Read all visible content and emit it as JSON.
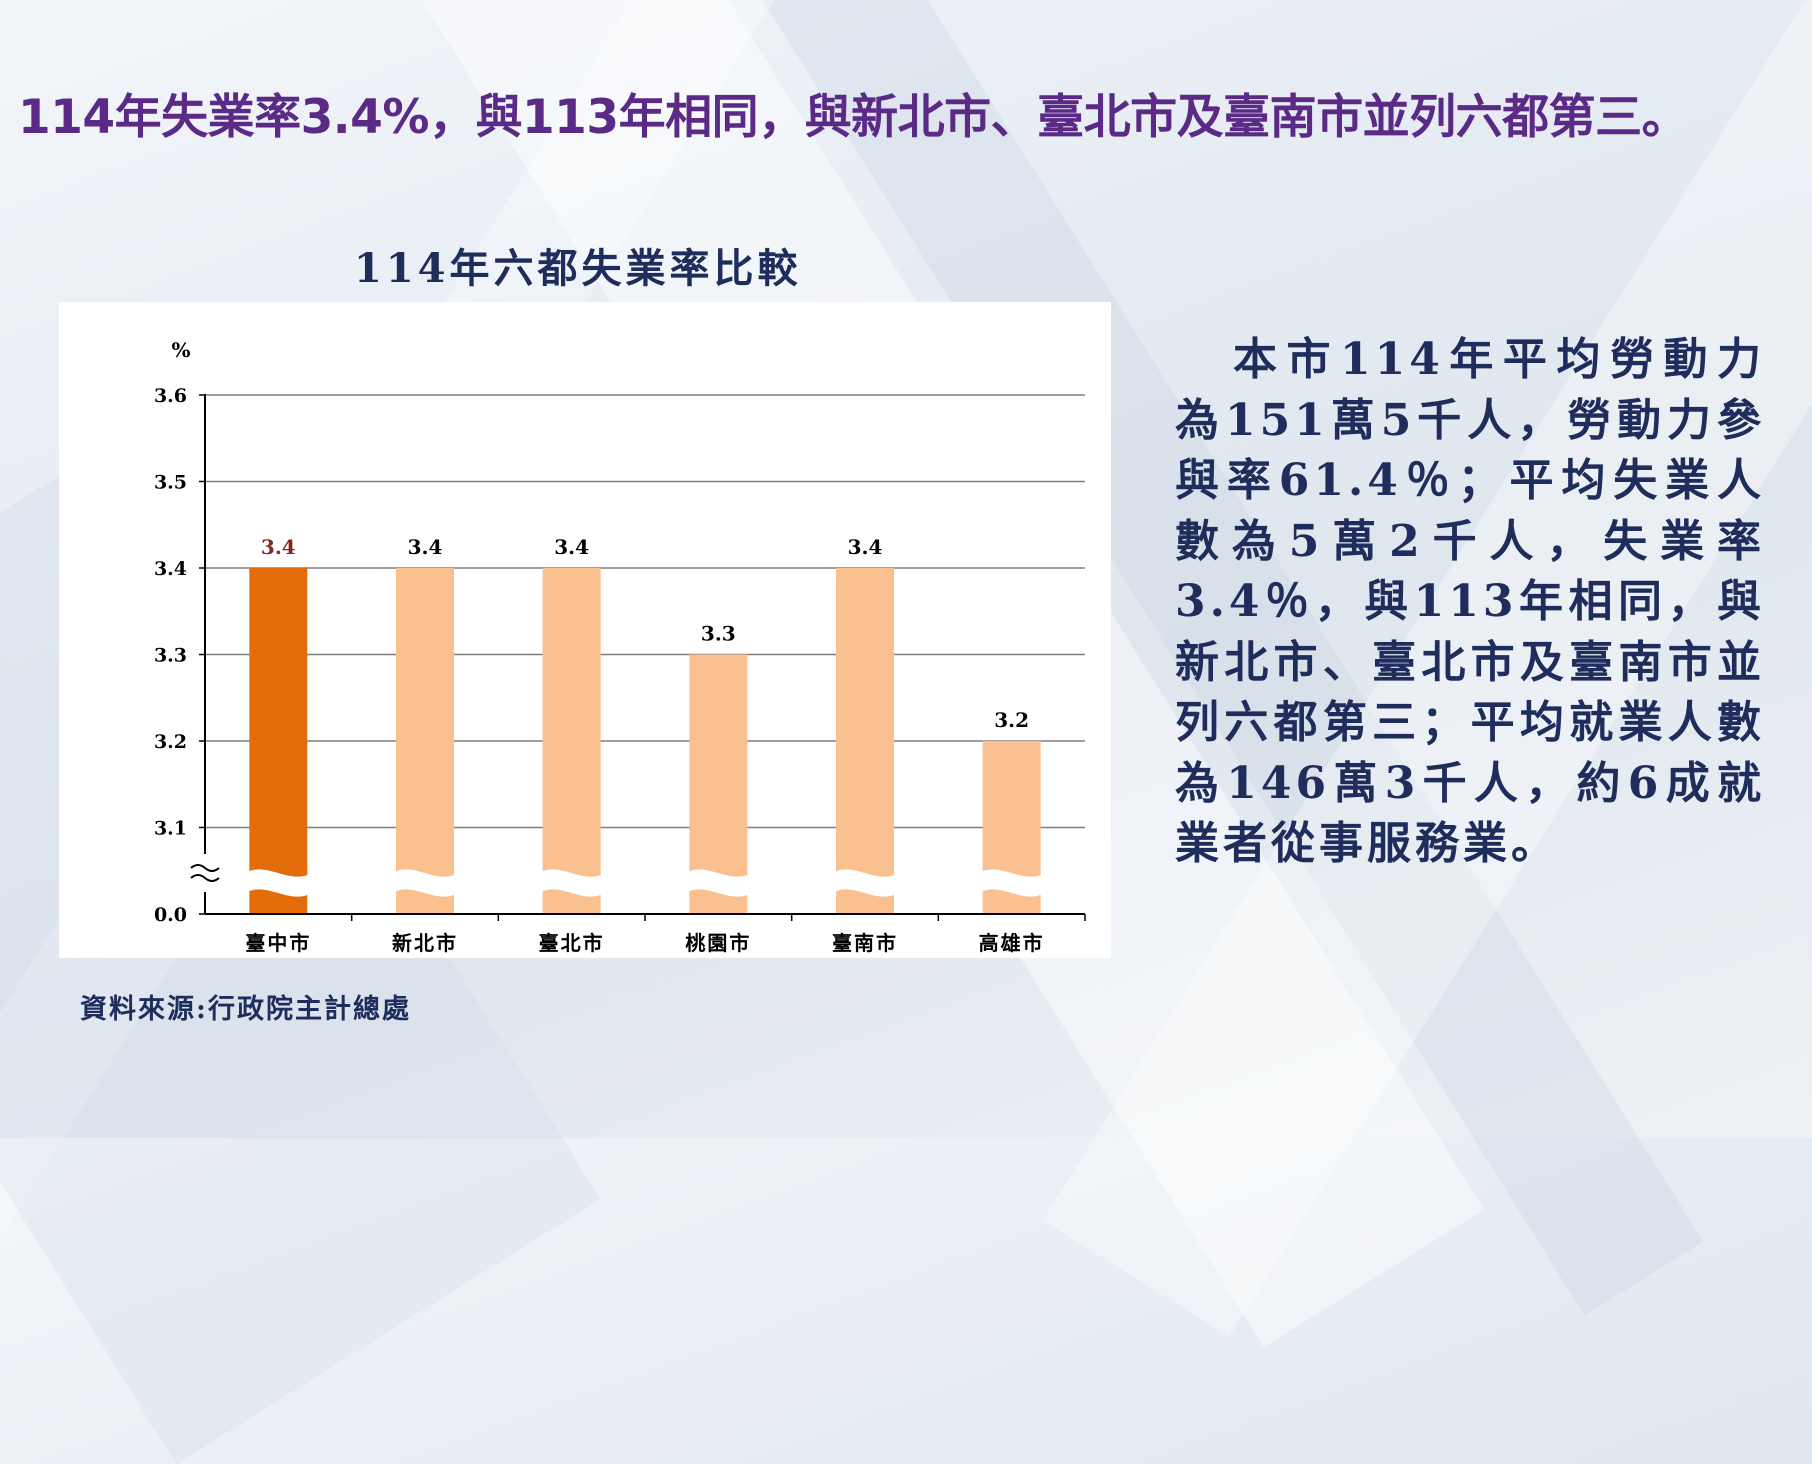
{
  "headline": "114年失業率3.4%，與113年相同，與新北市、臺北市及臺南市並列六都第三。",
  "body_text": "本市114年平均勞動力為151萬5千人，勞動力參與率61.4％；平均失業人數為5萬2千人，失業率3.4％，與113年相同，與新北市、臺北市及臺南市並列六都第三；平均就業人數為146萬3千人，約6成就業者從事服務業。",
  "source": "資料來源:行政院主計總處",
  "chart_data": {
    "type": "bar",
    "title": "114年六都失業率比較",
    "ylabel": "%",
    "categories": [
      "臺中市",
      "新北市",
      "臺北市",
      "桃園市",
      "臺南市",
      "高雄市"
    ],
    "values": [
      3.4,
      3.4,
      3.4,
      3.3,
      3.4,
      3.2
    ],
    "value_labels": [
      "3.4",
      "3.4",
      "3.4",
      "3.3",
      "3.4",
      "3.2"
    ],
    "ylim": [
      3.0,
      3.6
    ],
    "axis_break": true,
    "yticks": [
      "0.0",
      "3.1",
      "3.2",
      "3.3",
      "3.4",
      "3.5",
      "3.6"
    ],
    "grid": true,
    "legend": "none",
    "colors": {
      "highlight": "#e36c0a",
      "other": "#fac090",
      "highlight_label": "#7f2a1a"
    }
  }
}
